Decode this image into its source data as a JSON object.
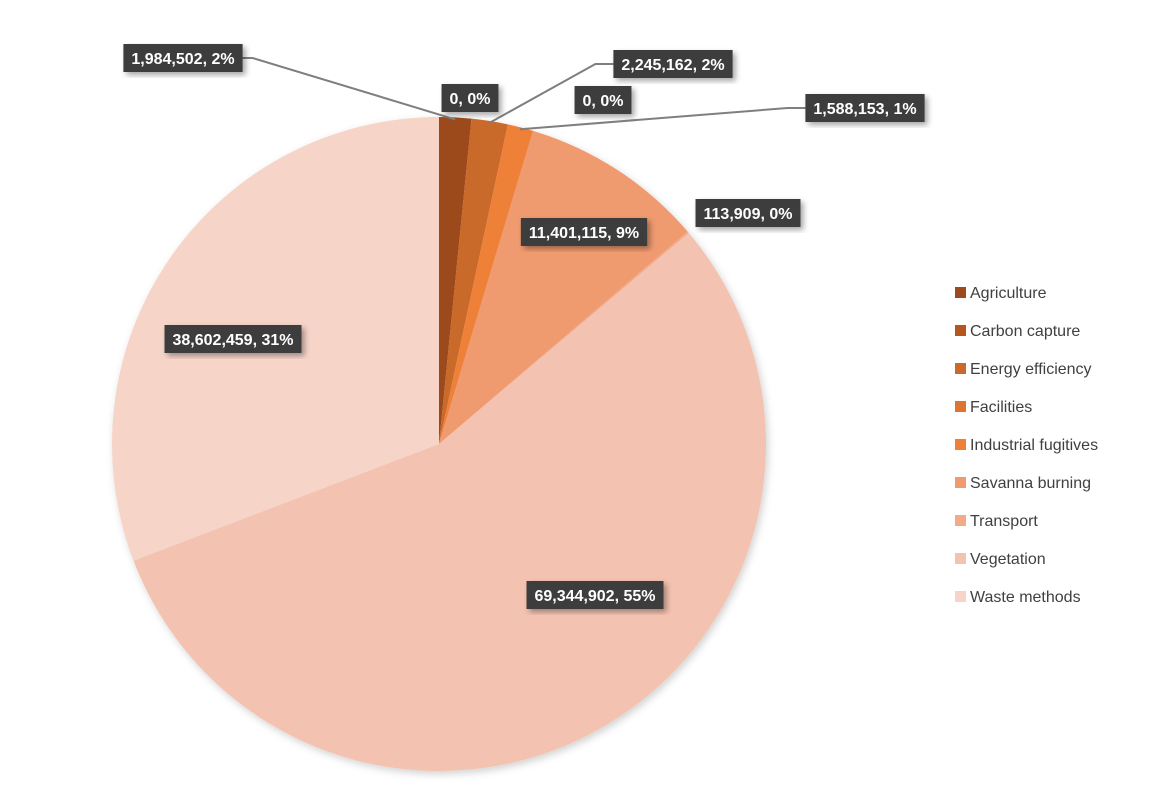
{
  "chart_data": {
    "type": "pie",
    "title": "",
    "series": [
      {
        "name": "",
        "categories": [
          "Agriculture",
          "Carbon capture",
          "Energy efficiency",
          "Facilities",
          "Industrial fugitives",
          "Savanna burning",
          "Transport",
          "Vegetation",
          "Waste methods"
        ],
        "values": [
          1984502,
          0,
          2245162,
          0,
          1588153,
          11401115,
          113909,
          69344902,
          38602459
        ],
        "data_labels": [
          "1,984,502, 2%",
          "0, 0%",
          "2,245,162, 2%",
          "0, 0%",
          "1,588,153, 1%",
          "11,401,115, 9%",
          "113,909, 0%",
          "69,344,902, 55%",
          "38,602,459, 31%"
        ],
        "colors": [
          "#9c4a1e",
          "#b55621",
          "#c96a2c",
          "#dd7530",
          "#ee8037",
          "#f09a70",
          "#f2aa89",
          "#f4c2b0",
          "#f6d4c8"
        ]
      }
    ],
    "legend": {
      "position": "right",
      "entries": [
        {
          "label": "Agriculture",
          "color": "#9c4a1e"
        },
        {
          "label": "Carbon capture",
          "color": "#b55621"
        },
        {
          "label": "Energy efficiency",
          "color": "#c96a2c"
        },
        {
          "label": "Facilities",
          "color": "#dd7530"
        },
        {
          "label": "Industrial fugitives",
          "color": "#ee8037"
        },
        {
          "label": "Savanna burning",
          "color": "#f09a70"
        },
        {
          "label": "Transport",
          "color": "#f2aa89"
        },
        {
          "label": "Vegetation",
          "color": "#f4c2b0"
        },
        {
          "label": "Waste methods",
          "color": "#f6d4c8"
        }
      ]
    },
    "label_box_color": "#3d3d3d",
    "leader_line_color": "#7f7f7f"
  }
}
